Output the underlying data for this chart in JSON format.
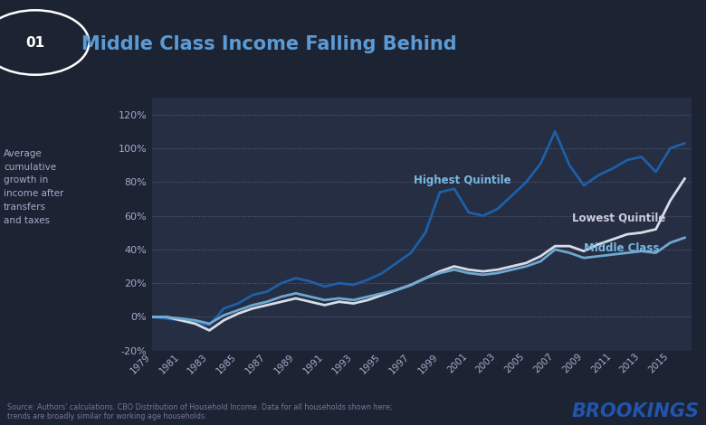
{
  "title": "Middle Class Income Falling Behind",
  "title_number": "01",
  "ylabel_lines": [
    "Average",
    "cumulative",
    "growth in",
    "income after",
    "transfers",
    "and taxes"
  ],
  "background_color": "#1c2333",
  "plot_bg_color": "#252e42",
  "title_color": "#5b9bd5",
  "source_text": "Source: Authors' calculations. CBO Distribution of Household Income. Data for all households shown here;\ntrends are broadly similar for working age households.",
  "brookings_text": "BROOKINGS",
  "years": [
    1979,
    1980,
    1981,
    1982,
    1983,
    1984,
    1985,
    1986,
    1987,
    1988,
    1989,
    1990,
    1991,
    1992,
    1993,
    1994,
    1995,
    1996,
    1997,
    1998,
    1999,
    2000,
    2001,
    2002,
    2003,
    2004,
    2005,
    2006,
    2007,
    2008,
    2009,
    2010,
    2011,
    2012,
    2013,
    2014,
    2015,
    2016
  ],
  "highest_quintile": [
    0,
    -1,
    -2,
    -3,
    -5,
    5,
    8,
    13,
    15,
    20,
    23,
    21,
    18,
    20,
    19,
    22,
    26,
    32,
    38,
    50,
    74,
    76,
    62,
    60,
    64,
    72,
    80,
    91,
    110,
    90,
    78,
    84,
    88,
    93,
    95,
    86,
    100,
    103
  ],
  "lowest_quintile": [
    0,
    0,
    -2,
    -4,
    -8,
    -2,
    2,
    5,
    7,
    9,
    11,
    9,
    7,
    9,
    8,
    10,
    13,
    16,
    19,
    23,
    27,
    30,
    28,
    27,
    28,
    30,
    32,
    36,
    42,
    42,
    39,
    43,
    46,
    49,
    50,
    52,
    69,
    82
  ],
  "middle_class": [
    0,
    0,
    -1,
    -2,
    -4,
    1,
    4,
    7,
    9,
    12,
    14,
    12,
    10,
    11,
    10,
    12,
    14,
    16,
    19,
    23,
    26,
    28,
    26,
    25,
    26,
    28,
    30,
    33,
    40,
    38,
    35,
    36,
    37,
    38,
    39,
    38,
    44,
    47
  ],
  "highest_color": "#1f5fa6",
  "lowest_color": "#d8dce8",
  "middle_color": "#6fa8d0",
  "ylim": [
    -20,
    130
  ],
  "yticks": [
    -20,
    0,
    20,
    40,
    60,
    80,
    100,
    120
  ],
  "xtick_years": [
    1979,
    1981,
    1983,
    1985,
    1987,
    1989,
    1991,
    1993,
    1995,
    1997,
    1999,
    2001,
    2003,
    2005,
    2007,
    2009,
    2011,
    2013,
    2015
  ],
  "grid_color": "#6a7090",
  "label_highest": "Highest Quintile",
  "label_lowest": "Lowest Quintile",
  "label_middle": "Middle Class"
}
